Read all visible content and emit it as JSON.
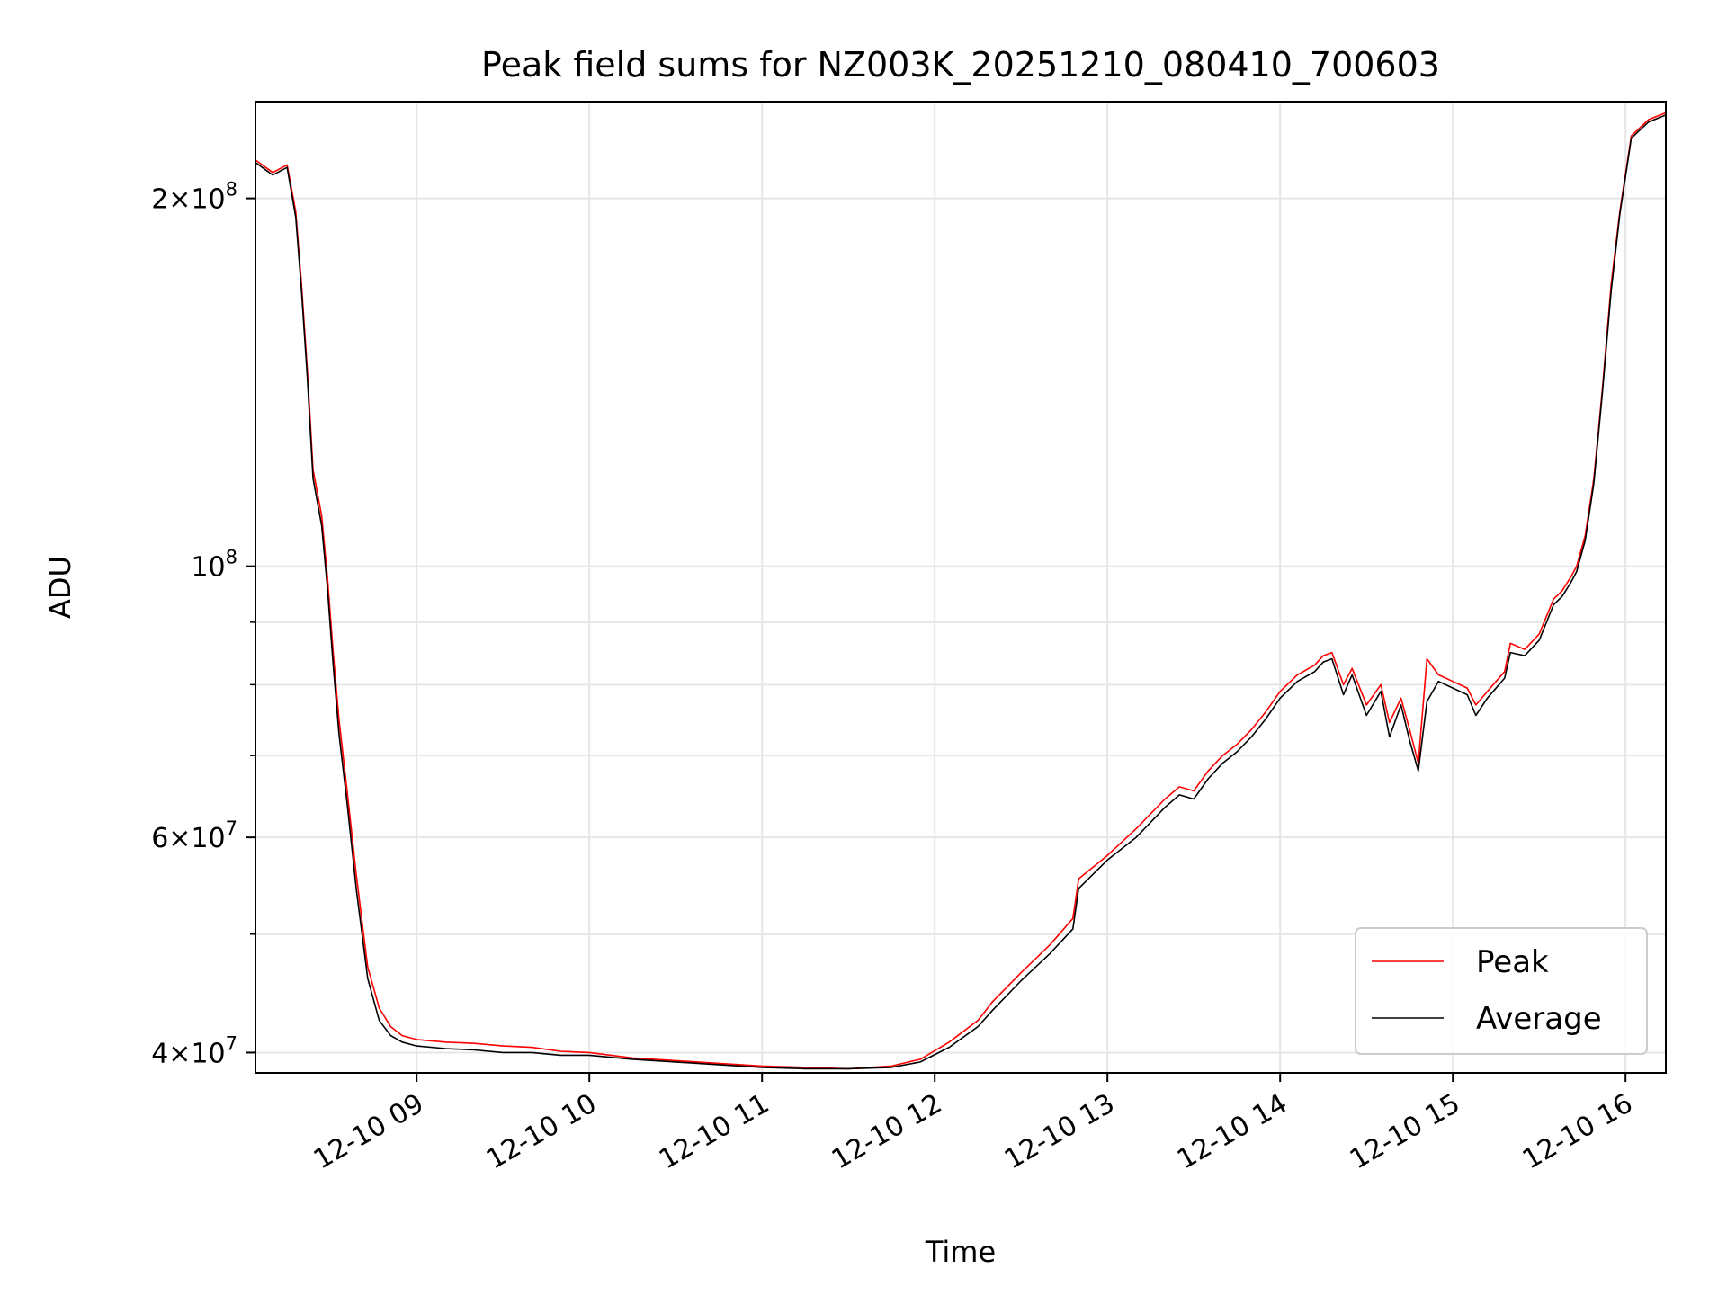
{
  "chart_data": {
    "type": "line",
    "title": "Peak field sums for NZ003K_20251210_080410_700603",
    "xlabel": "Time",
    "ylabel": "ADU",
    "x_scale": "time",
    "y_scale": "log",
    "xlim": [
      "2025-12-10 08:04",
      "2025-12-10 16:14"
    ],
    "ylim": [
      38500000,
      240000000
    ],
    "grid": true,
    "legend_position": "lower right",
    "x_ticks": [
      {
        "value": "2025-12-10 09:00",
        "label": "12-10 09"
      },
      {
        "value": "2025-12-10 10:00",
        "label": "12-10 10"
      },
      {
        "value": "2025-12-10 11:00",
        "label": "12-10 11"
      },
      {
        "value": "2025-12-10 12:00",
        "label": "12-10 12"
      },
      {
        "value": "2025-12-10 13:00",
        "label": "12-10 13"
      },
      {
        "value": "2025-12-10 14:00",
        "label": "12-10 14"
      },
      {
        "value": "2025-12-10 15:00",
        "label": "12-10 15"
      },
      {
        "value": "2025-12-10 16:00",
        "label": "12-10 16"
      }
    ],
    "y_major_ticks": [
      {
        "value": 40000000,
        "mantissa": "4",
        "base": "10",
        "exp": "7"
      },
      {
        "value": 60000000,
        "mantissa": "6",
        "base": "10",
        "exp": "7"
      },
      {
        "value": 100000000,
        "mantissa": "",
        "base": "10",
        "exp": "8"
      },
      {
        "value": 200000000,
        "mantissa": "2",
        "base": "10",
        "exp": "8"
      }
    ],
    "y_minor_ticks": [
      50000000,
      70000000,
      80000000,
      90000000
    ],
    "series": [
      {
        "name": "Peak",
        "color": "#ff0000",
        "x": [
          "2025-12-10 08:04",
          "2025-12-10 08:10",
          "2025-12-10 08:15",
          "2025-12-10 08:18",
          "2025-12-10 08:20",
          "2025-12-10 08:22",
          "2025-12-10 08:24",
          "2025-12-10 08:27",
          "2025-12-10 08:29",
          "2025-12-10 08:31",
          "2025-12-10 08:33",
          "2025-12-10 08:36",
          "2025-12-10 08:39",
          "2025-12-10 08:43",
          "2025-12-10 08:47",
          "2025-12-10 08:51",
          "2025-12-10 08:55",
          "2025-12-10 09:00",
          "2025-12-10 09:10",
          "2025-12-10 09:20",
          "2025-12-10 09:30",
          "2025-12-10 09:40",
          "2025-12-10 09:50",
          "2025-12-10 10:00",
          "2025-12-10 10:15",
          "2025-12-10 10:30",
          "2025-12-10 10:45",
          "2025-12-10 11:00",
          "2025-12-10 11:15",
          "2025-12-10 11:30",
          "2025-12-10 11:45",
          "2025-12-10 11:55",
          "2025-12-10 12:05",
          "2025-12-10 12:15",
          "2025-12-10 12:20",
          "2025-12-10 12:30",
          "2025-12-10 12:40",
          "2025-12-10 12:48",
          "2025-12-10 12:50",
          "2025-12-10 13:00",
          "2025-12-10 13:10",
          "2025-12-10 13:20",
          "2025-12-10 13:25",
          "2025-12-10 13:30",
          "2025-12-10 13:35",
          "2025-12-10 13:40",
          "2025-12-10 13:45",
          "2025-12-10 13:50",
          "2025-12-10 13:55",
          "2025-12-10 14:00",
          "2025-12-10 14:06",
          "2025-12-10 14:12",
          "2025-12-10 14:15",
          "2025-12-10 14:18",
          "2025-12-10 14:22",
          "2025-12-10 14:25",
          "2025-12-10 14:30",
          "2025-12-10 14:35",
          "2025-12-10 14:38",
          "2025-12-10 14:42",
          "2025-12-10 14:45",
          "2025-12-10 14:48",
          "2025-12-10 14:51",
          "2025-12-10 14:55",
          "2025-12-10 15:00",
          "2025-12-10 15:05",
          "2025-12-10 15:08",
          "2025-12-10 15:12",
          "2025-12-10 15:18",
          "2025-12-10 15:20",
          "2025-12-10 15:25",
          "2025-12-10 15:30",
          "2025-12-10 15:35",
          "2025-12-10 15:38",
          "2025-12-10 15:41",
          "2025-12-10 15:43",
          "2025-12-10 15:46",
          "2025-12-10 15:49",
          "2025-12-10 15:52",
          "2025-12-10 15:55",
          "2025-12-10 15:58",
          "2025-12-10 16:02",
          "2025-12-10 16:08",
          "2025-12-10 16:14"
        ],
        "values": [
          215000000,
          210000000,
          213000000,
          195000000,
          170000000,
          145000000,
          120000000,
          110000000,
          98000000,
          85000000,
          75000000,
          65000000,
          56000000,
          47000000,
          43500000,
          42000000,
          41300000,
          41000000,
          40800000,
          40700000,
          40500000,
          40400000,
          40100000,
          40000000,
          39600000,
          39400000,
          39200000,
          39000000,
          38900000,
          38800000,
          39000000,
          39500000,
          40800000,
          42500000,
          44000000,
          46500000,
          49000000,
          51500000,
          55500000,
          58000000,
          61000000,
          64500000,
          66000000,
          65500000,
          68000000,
          70000000,
          71500000,
          73500000,
          76000000,
          79000000,
          81500000,
          83000000,
          84500000,
          85000000,
          80000000,
          82500000,
          77000000,
          80000000,
          74500000,
          78000000,
          73500000,
          69000000,
          84000000,
          81500000,
          80500000,
          79500000,
          77000000,
          79000000,
          82000000,
          86500000,
          85500000,
          88000000,
          94000000,
          95500000,
          98000000,
          100000000,
          106000000,
          118000000,
          140000000,
          170000000,
          195000000,
          225000000,
          232000000,
          235000000
        ]
      },
      {
        "name": "Average",
        "color": "#000000",
        "x": [
          "2025-12-10 08:04",
          "2025-12-10 08:10",
          "2025-12-10 08:15",
          "2025-12-10 08:18",
          "2025-12-10 08:20",
          "2025-12-10 08:22",
          "2025-12-10 08:24",
          "2025-12-10 08:27",
          "2025-12-10 08:29",
          "2025-12-10 08:31",
          "2025-12-10 08:33",
          "2025-12-10 08:36",
          "2025-12-10 08:39",
          "2025-12-10 08:43",
          "2025-12-10 08:47",
          "2025-12-10 08:51",
          "2025-12-10 08:55",
          "2025-12-10 09:00",
          "2025-12-10 09:10",
          "2025-12-10 09:20",
          "2025-12-10 09:30",
          "2025-12-10 09:40",
          "2025-12-10 09:50",
          "2025-12-10 10:00",
          "2025-12-10 10:15",
          "2025-12-10 10:30",
          "2025-12-10 10:45",
          "2025-12-10 11:00",
          "2025-12-10 11:15",
          "2025-12-10 11:30",
          "2025-12-10 11:45",
          "2025-12-10 11:55",
          "2025-12-10 12:05",
          "2025-12-10 12:15",
          "2025-12-10 12:20",
          "2025-12-10 12:30",
          "2025-12-10 12:40",
          "2025-12-10 12:48",
          "2025-12-10 12:50",
          "2025-12-10 13:00",
          "2025-12-10 13:10",
          "2025-12-10 13:20",
          "2025-12-10 13:25",
          "2025-12-10 13:30",
          "2025-12-10 13:35",
          "2025-12-10 13:40",
          "2025-12-10 13:45",
          "2025-12-10 13:50",
          "2025-12-10 13:55",
          "2025-12-10 14:00",
          "2025-12-10 14:06",
          "2025-12-10 14:12",
          "2025-12-10 14:15",
          "2025-12-10 14:18",
          "2025-12-10 14:22",
          "2025-12-10 14:25",
          "2025-12-10 14:30",
          "2025-12-10 14:35",
          "2025-12-10 14:38",
          "2025-12-10 14:42",
          "2025-12-10 14:45",
          "2025-12-10 14:48",
          "2025-12-10 14:51",
          "2025-12-10 14:55",
          "2025-12-10 15:00",
          "2025-12-10 15:05",
          "2025-12-10 15:08",
          "2025-12-10 15:12",
          "2025-12-10 15:18",
          "2025-12-10 15:20",
          "2025-12-10 15:25",
          "2025-12-10 15:30",
          "2025-12-10 15:35",
          "2025-12-10 15:38",
          "2025-12-10 15:41",
          "2025-12-10 15:43",
          "2025-12-10 15:46",
          "2025-12-10 15:49",
          "2025-12-10 15:52",
          "2025-12-10 15:55",
          "2025-12-10 15:58",
          "2025-12-10 16:02",
          "2025-12-10 16:08",
          "2025-12-10 16:14"
        ],
        "values": [
          214000000,
          209000000,
          212000000,
          193000000,
          168000000,
          143000000,
          118000000,
          108000000,
          96000000,
          83000000,
          73000000,
          63500000,
          54500000,
          46000000,
          42500000,
          41300000,
          40800000,
          40500000,
          40300000,
          40200000,
          40000000,
          40000000,
          39800000,
          39800000,
          39500000,
          39300000,
          39100000,
          38900000,
          38800000,
          38800000,
          38900000,
          39300000,
          40400000,
          42000000,
          43300000,
          45800000,
          48200000,
          50500000,
          54500000,
          57500000,
          60000000,
          63500000,
          65000000,
          64500000,
          67000000,
          69000000,
          70500000,
          72500000,
          75000000,
          78000000,
          80500000,
          82000000,
          83500000,
          84000000,
          78500000,
          81500000,
          75500000,
          79000000,
          72500000,
          77000000,
          72000000,
          68000000,
          77500000,
          80500000,
          79500000,
          78500000,
          75500000,
          78000000,
          81000000,
          85000000,
          84500000,
          87000000,
          93000000,
          94500000,
          97000000,
          99000000,
          105000000,
          117000000,
          139000000,
          168000000,
          194000000,
          224000000,
          231000000,
          234000000
        ]
      }
    ]
  }
}
